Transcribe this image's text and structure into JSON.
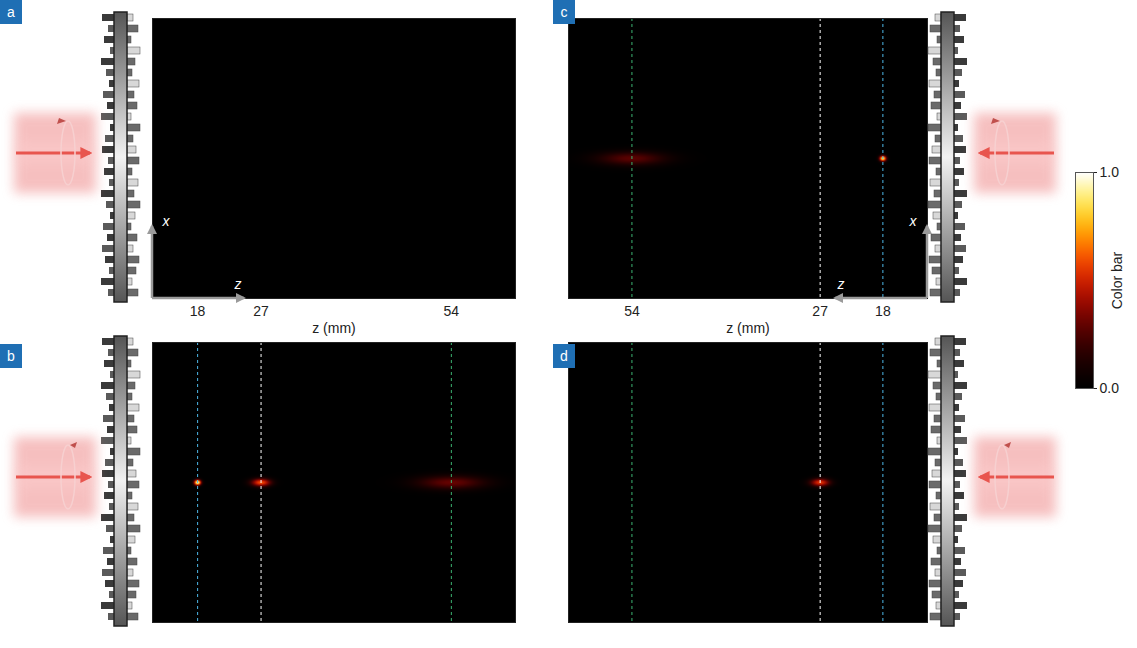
{
  "chart_data": [
    {
      "type": "heatmap",
      "label": "a",
      "xlabel": "z (mm)",
      "xlim": [
        11.6,
        63.1
      ],
      "xticks": [
        18,
        27,
        54
      ],
      "ylim": [
        -1,
        1
      ],
      "tick_labels": "x",
      "coordinate_labels": [
        "x",
        "z"
      ],
      "guides": [],
      "spots": []
    },
    {
      "type": "heatmap",
      "label": "b",
      "xlim": [
        11.6,
        63.1
      ],
      "ylim": [
        -1,
        1
      ],
      "tick_labels": false,
      "guides": [
        {
          "z": 18,
          "color": "#4db8e8"
        },
        {
          "z": 27,
          "color": "#ffffff"
        },
        {
          "z": 54,
          "color": "#3cb371"
        }
      ],
      "spots": [
        {
          "z": 18,
          "x": 0,
          "intensity": 1.0,
          "width_z": 0.35,
          "width_x": 0.014
        },
        {
          "z": 27,
          "x": 0,
          "intensity": 0.6,
          "width_z": 1.0,
          "width_x": 0.02
        },
        {
          "z": 54,
          "x": 0,
          "intensity": 0.3,
          "width_z": 3.5,
          "width_x": 0.035
        }
      ]
    },
    {
      "type": "heatmap",
      "label": "c",
      "xlabel": "z (mm)",
      "xlim": [
        63.1,
        11.6
      ],
      "xticks": [
        18,
        27,
        54
      ],
      "ylim": [
        -1,
        1
      ],
      "tick_labels": "x",
      "coordinate_labels": [
        "x",
        "z"
      ],
      "guides": [
        {
          "z": 18,
          "color": "#4db8e8"
        },
        {
          "z": 27,
          "color": "#ffffff"
        },
        {
          "z": 54,
          "color": "#3cb371"
        }
      ],
      "spots": [
        {
          "z": 18,
          "x": 0,
          "intensity": 0.9,
          "width_z": 0.35,
          "width_x": 0.014
        },
        {
          "z": 54,
          "x": 0,
          "intensity": 0.28,
          "width_z": 3.5,
          "width_x": 0.035
        }
      ]
    },
    {
      "type": "heatmap",
      "label": "d",
      "xlim": [
        63.1,
        11.6
      ],
      "ylim": [
        -1,
        1
      ],
      "tick_labels": false,
      "guides": [
        {
          "z": 18,
          "color": "#4db8e8"
        },
        {
          "z": 27,
          "color": "#ffffff"
        },
        {
          "z": 54,
          "color": "#3cb371"
        }
      ],
      "spots": [
        {
          "z": 27,
          "x": 0,
          "intensity": 0.55,
          "width_z": 1.0,
          "width_x": 0.02
        }
      ]
    }
  ],
  "colorbar": {
    "range": [
      0,
      1
    ],
    "ticks": [
      0,
      1
    ],
    "label": "Color bar"
  }
}
